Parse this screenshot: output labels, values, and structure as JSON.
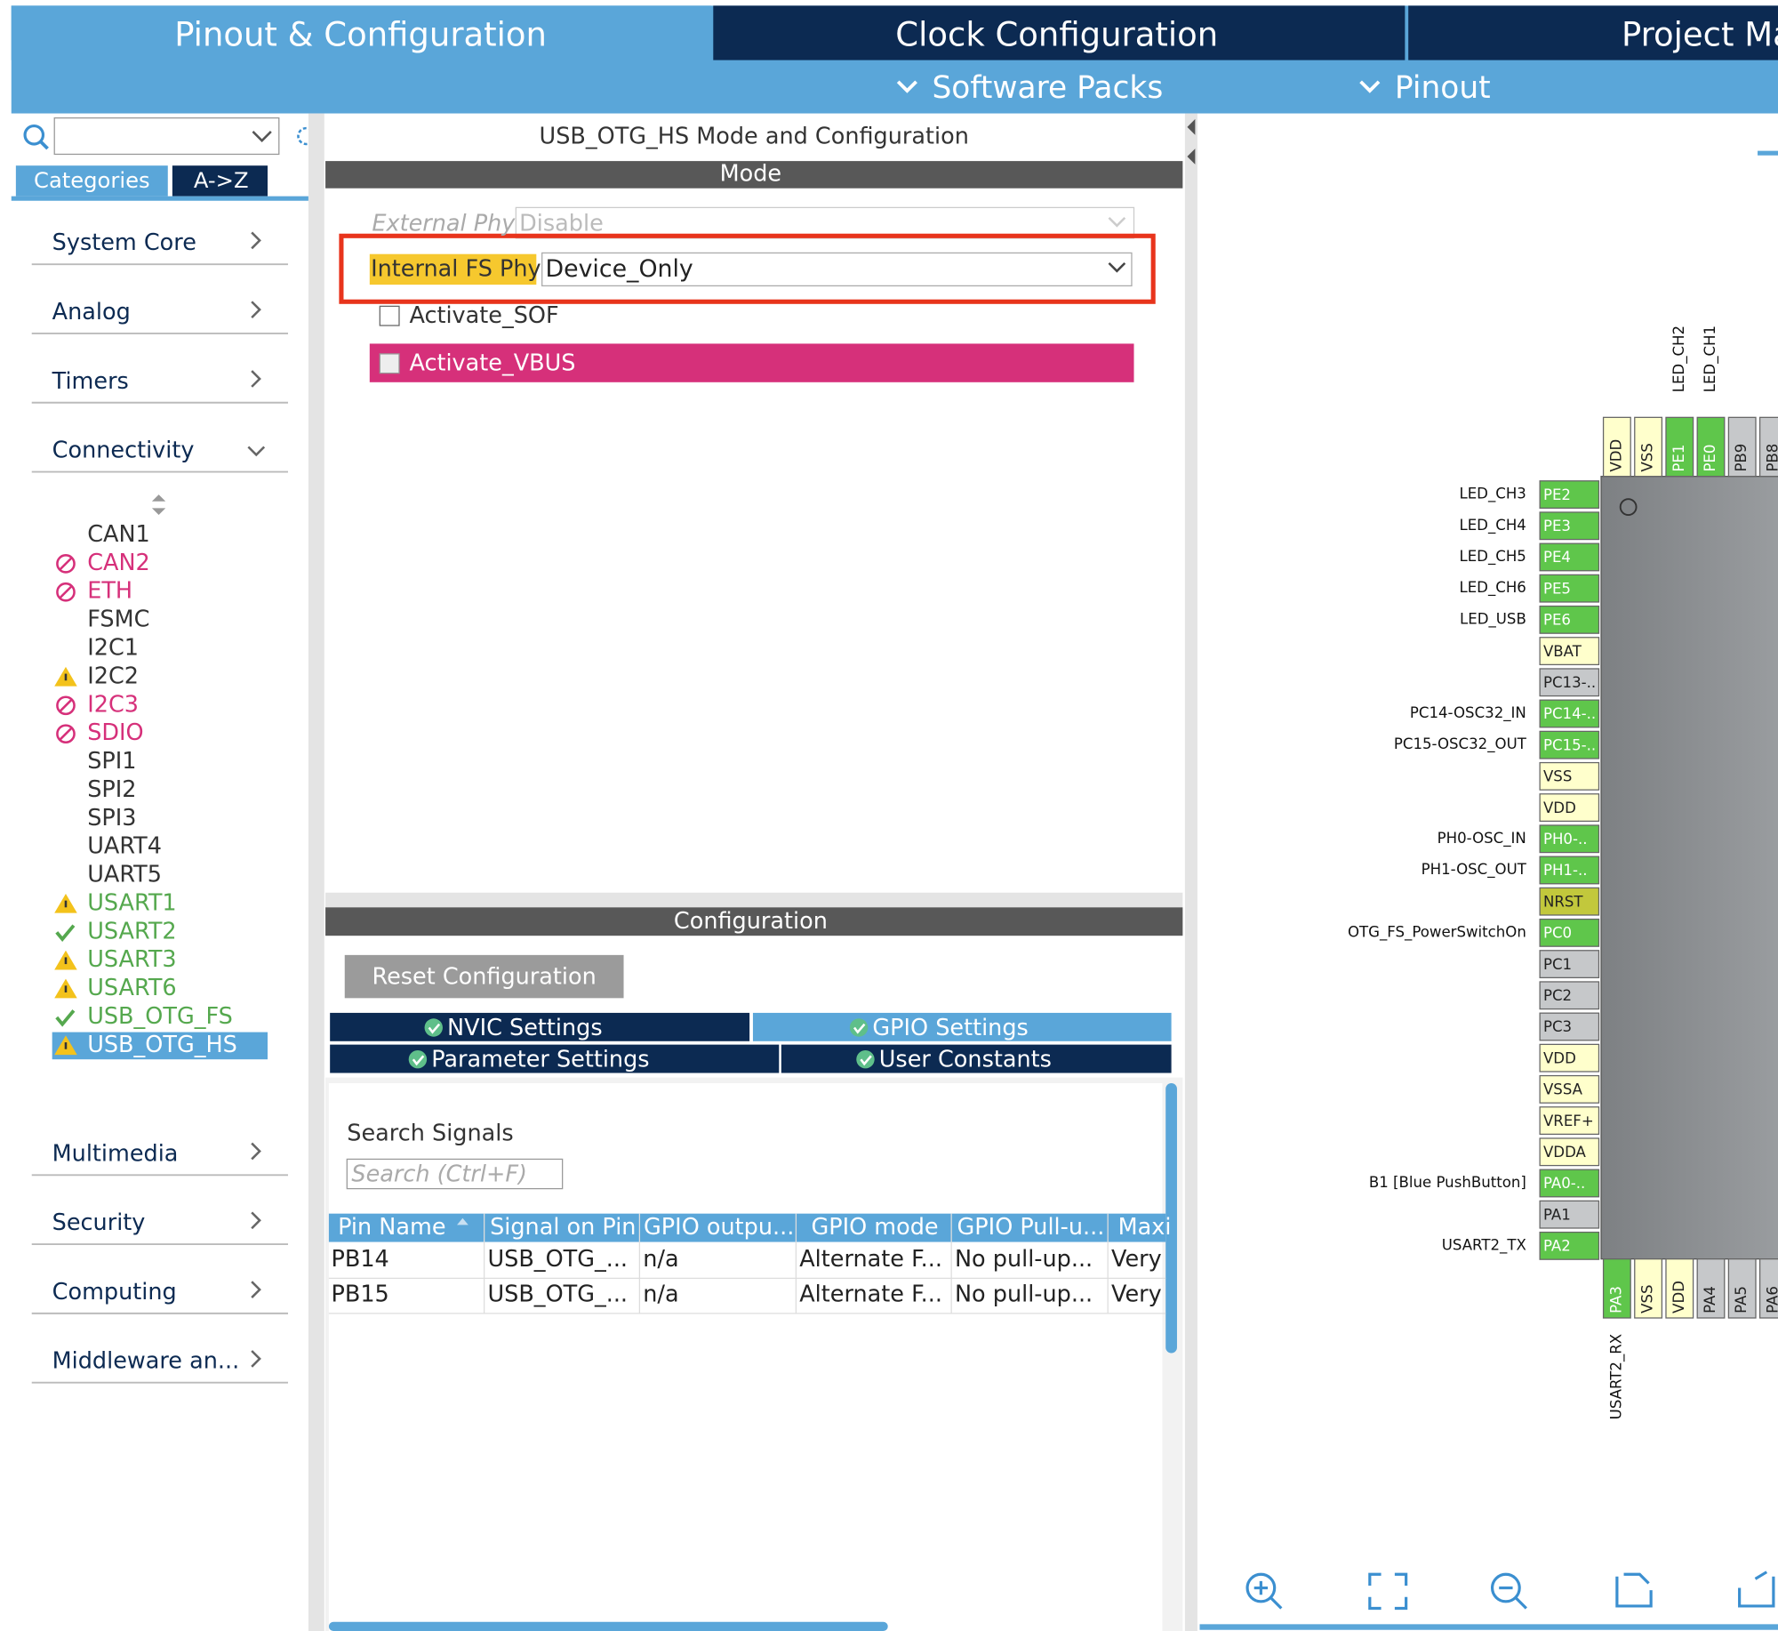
{
  "top_tabs": [
    "Pinout & Configuration",
    "Clock Configuration",
    "Project Ma"
  ],
  "sub_tabs": [
    "Software Packs",
    "Pinout"
  ],
  "sidebar": {
    "tabs": [
      "Categories",
      "A->Z"
    ],
    "categories": [
      "System Core",
      "Analog",
      "Timers",
      "Connectivity"
    ],
    "items": [
      {
        "label": "CAN1"
      },
      {
        "label": "CAN2",
        "status": "error"
      },
      {
        "label": "ETH",
        "status": "error"
      },
      {
        "label": "FSMC"
      },
      {
        "label": "I2C1"
      },
      {
        "label": "I2C2",
        "status": "warn"
      },
      {
        "label": "I2C3",
        "status": "error"
      },
      {
        "label": "SDIO",
        "status": "error"
      },
      {
        "label": "SPI1"
      },
      {
        "label": "SPI2"
      },
      {
        "label": "SPI3"
      },
      {
        "label": "UART4"
      },
      {
        "label": "UART5"
      },
      {
        "label": "USART1",
        "status": "warn",
        "active": true
      },
      {
        "label": "USART2",
        "status": "ok",
        "active": true
      },
      {
        "label": "USART3",
        "status": "warn",
        "active": true
      },
      {
        "label": "USART6",
        "status": "warn",
        "active": true
      },
      {
        "label": "USB_OTG_FS",
        "status": "ok",
        "active": true
      },
      {
        "label": "USB_OTG_HS",
        "status": "warn",
        "selected": true
      }
    ],
    "more_categories": [
      "Multimedia",
      "Security",
      "Computing",
      "Middleware an..."
    ]
  },
  "mode_panel": {
    "title": "USB_OTG_HS Mode and Configuration",
    "header": "Mode",
    "external_phy": {
      "label": "External Phy",
      "value": "Disable"
    },
    "internal_fs_phy": {
      "label": "Internal FS Phy",
      "value": "Device_Only"
    },
    "checkboxes": [
      "Activate_SOF",
      "Activate_VBUS"
    ]
  },
  "config_panel": {
    "header": "Configuration",
    "reset_button": "Reset Configuration",
    "tabs": [
      "NVIC Settings",
      "GPIO Settings",
      "Parameter Settings",
      "User Constants"
    ],
    "search_label": "Search Signals",
    "search_placeholder": "Search (Ctrl+F)",
    "columns": [
      "Pin Name",
      "Signal on Pin",
      "GPIO outpu...",
      "GPIO mode",
      "GPIO Pull-u...",
      "Maxi"
    ],
    "rows": [
      [
        "PB14",
        "USB_OTG_...",
        "n/a",
        "Alternate F...",
        "No pull-up...",
        "Very"
      ],
      [
        "PB15",
        "USB_OTG_...",
        "n/a",
        "Alternate F...",
        "No pull-up...",
        "Very"
      ]
    ]
  },
  "chip": {
    "left_pins": [
      {
        "pin": "PE2",
        "kind": "signal",
        "label": "LED_CH3"
      },
      {
        "pin": "PE3",
        "kind": "signal",
        "label": "LED_CH4"
      },
      {
        "pin": "PE4",
        "kind": "signal",
        "label": "LED_CH5"
      },
      {
        "pin": "PE5",
        "kind": "signal",
        "label": "LED_CH6"
      },
      {
        "pin": "PE6",
        "kind": "signal",
        "label": "LED_USB"
      },
      {
        "pin": "VBAT",
        "kind": "power"
      },
      {
        "pin": "PC13-..",
        "kind": "free"
      },
      {
        "pin": "PC14-..",
        "kind": "signal",
        "label": "PC14-OSC32_IN"
      },
      {
        "pin": "PC15-..",
        "kind": "signal",
        "label": "PC15-OSC32_OUT"
      },
      {
        "pin": "VSS",
        "kind": "power"
      },
      {
        "pin": "VDD",
        "kind": "power"
      },
      {
        "pin": "PH0-..",
        "kind": "signal",
        "label": "PH0-OSC_IN"
      },
      {
        "pin": "PH1-..",
        "kind": "signal",
        "label": "PH1-OSC_OUT"
      },
      {
        "pin": "NRST",
        "kind": "reset"
      },
      {
        "pin": "PC0",
        "kind": "signal",
        "label": "OTG_FS_PowerSwitchOn"
      },
      {
        "pin": "PC1",
        "kind": "free"
      },
      {
        "pin": "PC2",
        "kind": "free"
      },
      {
        "pin": "PC3",
        "kind": "free"
      },
      {
        "pin": "VDD",
        "kind": "power"
      },
      {
        "pin": "VSSA",
        "kind": "power"
      },
      {
        "pin": "VREF+",
        "kind": "power"
      },
      {
        "pin": "VDDA",
        "kind": "power"
      },
      {
        "pin": "PA0-..",
        "kind": "signal",
        "label": "B1 [Blue PushButton]"
      },
      {
        "pin": "PA1",
        "kind": "free"
      },
      {
        "pin": "PA2",
        "kind": "signal",
        "label": "USART2_TX"
      }
    ],
    "top_pins": [
      {
        "pin": "VDD",
        "kind": "power"
      },
      {
        "pin": "VSS",
        "kind": "power"
      },
      {
        "pin": "PE1",
        "kind": "signal",
        "label": "LED_CH2"
      },
      {
        "pin": "PE0",
        "kind": "signal",
        "label": "LED_CH1"
      },
      {
        "pin": "PB9",
        "kind": "free"
      },
      {
        "pin": "PB8",
        "kind": "free"
      }
    ],
    "bottom_pins": [
      {
        "pin": "PA3",
        "kind": "signal",
        "label": "USART2_RX"
      },
      {
        "pin": "VSS",
        "kind": "power"
      },
      {
        "pin": "VDD",
        "kind": "power"
      },
      {
        "pin": "PA4",
        "kind": "free"
      },
      {
        "pin": "PA5",
        "kind": "free"
      },
      {
        "pin": "PA6",
        "kind": "free"
      }
    ]
  }
}
